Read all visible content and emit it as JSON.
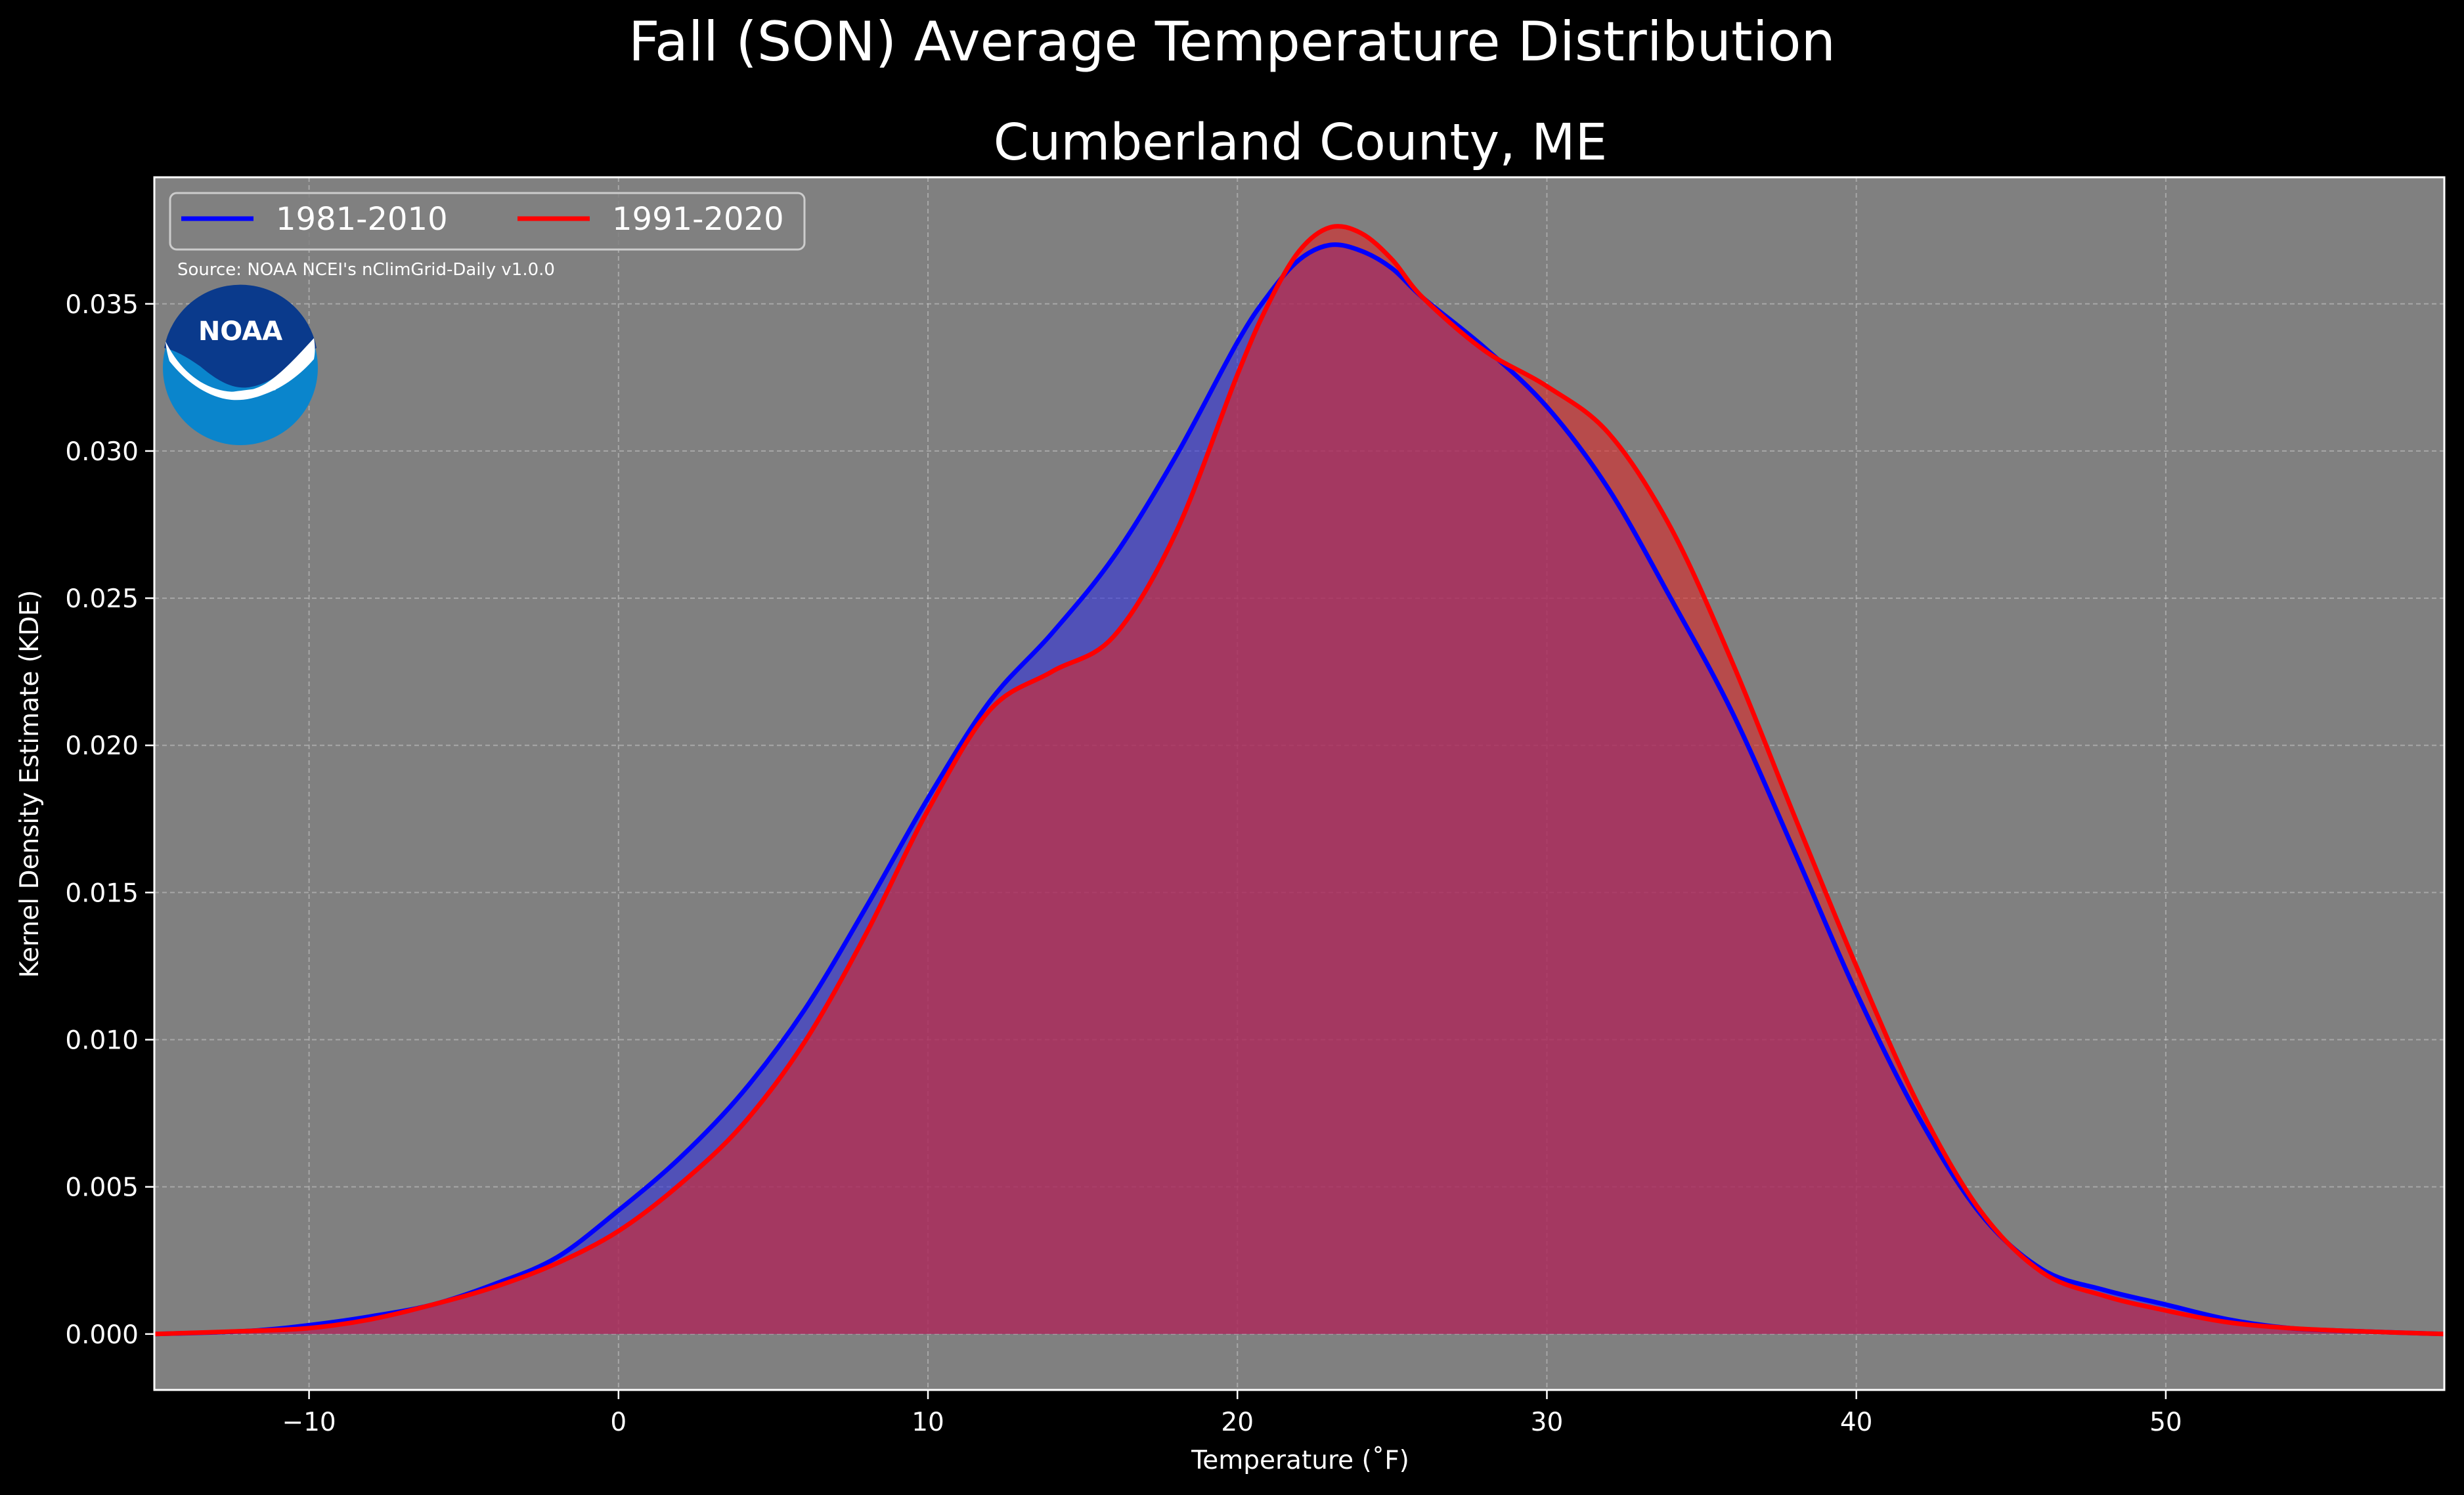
{
  "chart_data": {
    "type": "area",
    "title": "Fall (SON) Average Temperature Distribution",
    "subtitle": "Cumberland County, ME",
    "xlabel": "Temperature ($^\\circ$F)",
    "xlabel_display": "Temperature (˚F)",
    "ylabel": "Kernel Density Estimate (KDE)",
    "xlim": [
      -15,
      59
    ],
    "ylim": [
      -0.0019,
      0.0393
    ],
    "xticks": [
      -10,
      0,
      10,
      20,
      30,
      40,
      50
    ],
    "xtick_labels": [
      "−10",
      "0",
      "10",
      "20",
      "30",
      "40",
      "50"
    ],
    "yticks": [
      0.0,
      0.005,
      0.01,
      0.015,
      0.02,
      0.025,
      0.03,
      0.035
    ],
    "ytick_labels": [
      "0.000",
      "0.005",
      "0.010",
      "0.015",
      "0.020",
      "0.025",
      "0.030",
      "0.035"
    ],
    "grid": true,
    "legend_placement": "upper-left",
    "background_color": "#000000",
    "axes_facecolor": "#808080",
    "source_text": "Source: NOAA NCEI's nClimGrid-Daily v1.0.0",
    "logo": {
      "icon": "noaa-logo",
      "text": "NOAA"
    },
    "x": [
      -15,
      -12,
      -10,
      -8,
      -6,
      -4,
      -2,
      0,
      2,
      4,
      6,
      8,
      10,
      12,
      14,
      16,
      18,
      20,
      21,
      22,
      23,
      24,
      25,
      26,
      28,
      30,
      32,
      34,
      36,
      38,
      40,
      42,
      44,
      46,
      48,
      50,
      52,
      54,
      56,
      59
    ],
    "series": [
      {
        "name": "1981-2010",
        "color": "#0000ff",
        "fill": "#3232dc",
        "values": [
          0.0,
          0.0001,
          0.0003,
          0.0006,
          0.001,
          0.0017,
          0.0026,
          0.0042,
          0.006,
          0.0082,
          0.011,
          0.0145,
          0.0182,
          0.0215,
          0.0238,
          0.0264,
          0.0298,
          0.0337,
          0.0353,
          0.0365,
          0.037,
          0.0368,
          0.0362,
          0.0352,
          0.0335,
          0.0315,
          0.0287,
          0.025,
          0.0211,
          0.0164,
          0.0116,
          0.0074,
          0.0041,
          0.0022,
          0.0015,
          0.001,
          0.0005,
          0.0002,
          0.0001,
          0.0
        ]
      },
      {
        "name": "1991-2020",
        "color": "#ff0000",
        "fill": "#dc2828",
        "values": [
          0.0,
          0.0001,
          0.0002,
          0.0005,
          0.001,
          0.0016,
          0.0024,
          0.0035,
          0.0051,
          0.0071,
          0.0099,
          0.0136,
          0.0178,
          0.0212,
          0.0225,
          0.0237,
          0.0272,
          0.0326,
          0.035,
          0.0368,
          0.0376,
          0.0374,
          0.0365,
          0.0352,
          0.0334,
          0.0322,
          0.0306,
          0.0274,
          0.0228,
          0.0176,
          0.0125,
          0.0078,
          0.0042,
          0.0021,
          0.0013,
          0.0008,
          0.0004,
          0.0002,
          0.0001,
          0.0
        ]
      }
    ]
  }
}
